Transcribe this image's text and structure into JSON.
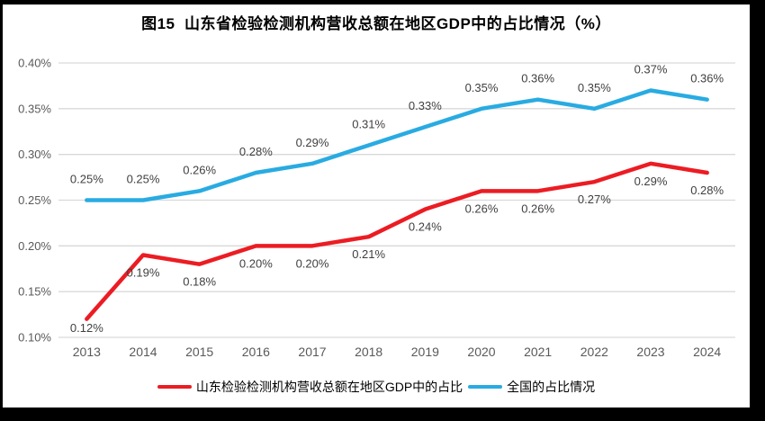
{
  "frame": {
    "border_color": "#000000",
    "background": "#ffffff"
  },
  "colors": {
    "grid": "#d9d9d9",
    "axis_text": "#595959",
    "data_label": "#404040",
    "title_text": "#000000"
  },
  "chart_data": {
    "type": "line",
    "title": "图15  山东省检验检测机构营收总额在地区GDP中的占比情况（%）",
    "categories": [
      "2013",
      "2014",
      "2015",
      "2016",
      "2017",
      "2018",
      "2019",
      "2020",
      "2021",
      "2022",
      "2023",
      "2024"
    ],
    "series": [
      {
        "id": "shandong",
        "name": "山东检验检测机构营收总额在地区GDP中的占比",
        "color": "#ec1c23",
        "values": [
          0.12,
          0.19,
          0.18,
          0.2,
          0.2,
          0.21,
          0.24,
          0.26,
          0.26,
          0.27,
          0.29,
          0.28
        ],
        "labels": [
          "0.12%",
          "0.19%",
          "0.18%",
          "0.20%",
          "0.20%",
          "0.21%",
          "0.24%",
          "0.26%",
          "0.26%",
          "0.27%",
          "0.29%",
          "0.28%"
        ],
        "label_position": "below"
      },
      {
        "id": "national",
        "name": "全国的占比情况",
        "color": "#29abe2",
        "values": [
          0.25,
          0.25,
          0.26,
          0.28,
          0.29,
          0.31,
          0.33,
          0.35,
          0.36,
          0.35,
          0.37,
          0.36
        ],
        "labels": [
          "0.25%",
          "0.25%",
          "0.26%",
          "0.28%",
          "0.29%",
          "0.31%",
          "0.33%",
          "0.35%",
          "0.36%",
          "0.35%",
          "0.37%",
          "0.36%"
        ],
        "label_position": "above"
      }
    ],
    "y_axis": {
      "min": 0.1,
      "max": 0.4,
      "step": 0.05,
      "ticks": [
        "0.10%",
        "0.15%",
        "0.20%",
        "0.25%",
        "0.30%",
        "0.35%",
        "0.40%"
      ]
    },
    "xlabel": "",
    "ylabel": "",
    "grid": true,
    "legend_position": "bottom"
  }
}
